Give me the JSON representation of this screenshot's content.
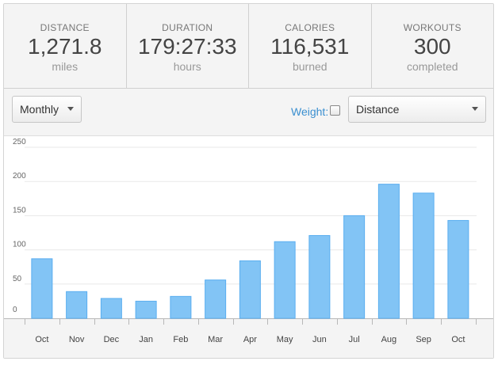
{
  "stats": [
    {
      "label": "DISTANCE",
      "value": "1,271.8",
      "unit": "miles"
    },
    {
      "label": "DURATION",
      "value": "179:27:33",
      "unit": "hours"
    },
    {
      "label": "CALORIES",
      "value": "116,531",
      "unit": "burned"
    },
    {
      "label": "WORKOUTS",
      "value": "300",
      "unit": "completed"
    }
  ],
  "controls": {
    "period_value": "Monthly",
    "weight_label": "Weight:",
    "weight_checked": false,
    "metric_value": "Distance"
  },
  "colors": {
    "bar_fill": "#82c4f5",
    "bar_stroke": "#5aaef0",
    "link": "#3a8fd0"
  },
  "chart_data": {
    "type": "bar",
    "categories": [
      "Oct",
      "Nov",
      "Dec",
      "Jan",
      "Feb",
      "Mar",
      "Apr",
      "May",
      "Jun",
      "Jul",
      "Aug",
      "Sep",
      "Oct"
    ],
    "values": [
      87,
      39,
      29,
      25,
      32,
      56,
      84,
      112,
      121,
      150,
      196,
      183,
      143
    ],
    "yticks": [
      0,
      50,
      100,
      150,
      200,
      250
    ],
    "ylim": [
      0,
      250
    ],
    "grid": true,
    "title": "",
    "xlabel": "",
    "ylabel": ""
  }
}
